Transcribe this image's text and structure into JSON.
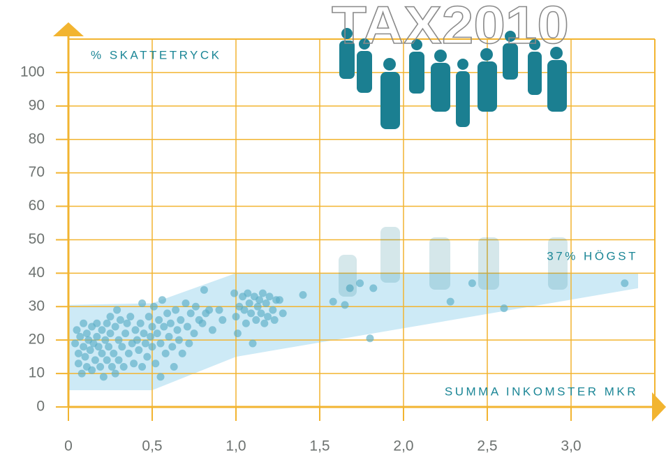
{
  "chart_data": {
    "type": "scatter",
    "title": "TAX2010",
    "ylabel": "% SKATTETRYCK",
    "xlabel": "SUMMA INKOMSTER MKR",
    "annotations": [
      "37% HÖGST"
    ],
    "color": "#5aaec6",
    "axis_color": "#f2b430",
    "xlim": [
      0,
      3.5
    ],
    "ylim": [
      0,
      110
    ],
    "xticks": [
      0,
      {
        "value": 0.5,
        "label": "0,5"
      },
      {
        "value": 1,
        "label": "1,0"
      },
      {
        "value": 1.5,
        "label": "1,5"
      },
      {
        "value": 2,
        "label": "2,0"
      },
      {
        "value": 2.5,
        "label": "2,5"
      },
      {
        "value": 3,
        "label": "3,0"
      }
    ],
    "yticks": [
      0,
      10,
      20,
      30,
      40,
      50,
      60,
      70,
      80,
      90,
      100
    ],
    "grid": true,
    "band": {
      "color": "#cdeaf6",
      "x": [
        0,
        0.5,
        1.0,
        3.4,
        3.4,
        1.0,
        0.5,
        0
      ],
      "y": [
        30.5,
        31,
        40,
        40,
        35.5,
        15,
        5,
        5
      ]
    },
    "x": [
      0.04,
      0.05,
      0.06,
      0.06,
      0.07,
      0.08,
      0.09,
      0.09,
      0.1,
      0.11,
      0.11,
      0.12,
      0.13,
      0.14,
      0.14,
      0.15,
      0.16,
      0.17,
      0.17,
      0.18,
      0.19,
      0.2,
      0.2,
      0.21,
      0.22,
      0.23,
      0.23,
      0.24,
      0.25,
      0.25,
      0.26,
      0.27,
      0.28,
      0.28,
      0.29,
      0.3,
      0.3,
      0.31,
      0.32,
      0.33,
      0.34,
      0.35,
      0.36,
      0.37,
      0.38,
      0.39,
      0.4,
      0.41,
      0.42,
      0.43,
      0.44,
      0.44,
      0.45,
      0.46,
      0.47,
      0.48,
      0.49,
      0.5,
      0.5,
      0.51,
      0.52,
      0.53,
      0.54,
      0.55,
      0.55,
      0.56,
      0.57,
      0.58,
      0.59,
      0.6,
      0.61,
      0.62,
      0.63,
      0.64,
      0.65,
      0.66,
      0.67,
      0.68,
      0.7,
      0.71,
      0.72,
      0.73,
      0.75,
      0.76,
      0.78,
      0.8,
      0.81,
      0.82,
      0.84,
      0.86,
      0.9,
      0.92,
      0.99,
      1.0,
      1.01,
      1.02,
      1.04,
      1.05,
      1.06,
      1.07,
      1.08,
      1.09,
      1.1,
      1.11,
      1.12,
      1.13,
      1.14,
      1.15,
      1.16,
      1.17,
      1.18,
      1.19,
      1.2,
      1.22,
      1.23,
      1.24,
      1.26,
      1.28,
      1.4,
      1.58,
      1.65,
      1.68,
      1.74,
      1.8,
      1.82,
      2.28,
      2.41,
      2.6,
      3.32
    ],
    "y": [
      19,
      23,
      16,
      13,
      21,
      10,
      25,
      18,
      15,
      22,
      12,
      20,
      17,
      24,
      11,
      19,
      14,
      25,
      21,
      18,
      12,
      23,
      16,
      9,
      20,
      25,
      14,
      18,
      27,
      22,
      12,
      16,
      10,
      24,
      29,
      20,
      14,
      26,
      18,
      12,
      22,
      25,
      16,
      27,
      19,
      13,
      23,
      20,
      17,
      25,
      12,
      31,
      22,
      19,
      15,
      27,
      21,
      24,
      18,
      30,
      13,
      22,
      26,
      9,
      19,
      32,
      24,
      16,
      28,
      21,
      25,
      18,
      12,
      29,
      23,
      20,
      26,
      16,
      31,
      24,
      19,
      28,
      22,
      30,
      26,
      25,
      35,
      28,
      29,
      23,
      29,
      26,
      34,
      27,
      22,
      30,
      33,
      29,
      25,
      34,
      31,
      28,
      19,
      33,
      26,
      30,
      32,
      28,
      34,
      25,
      31,
      27,
      33,
      29,
      26,
      32,
      32,
      28,
      33.5,
      31.5,
      30.5,
      35.5,
      37,
      20.5,
      35.5,
      31.5,
      37,
      29.5,
      37
    ]
  }
}
